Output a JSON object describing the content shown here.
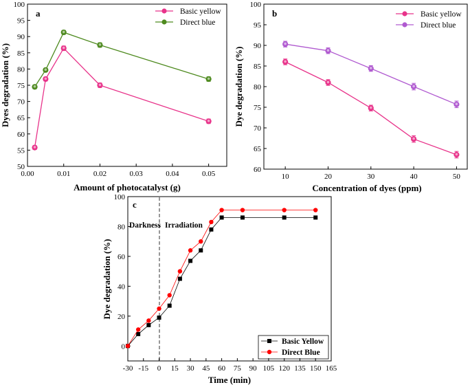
{
  "chart_data": [
    {
      "panel": "a",
      "type": "line",
      "xlabel": "Amount of photocatalyst (g)",
      "ylabel": "Dyes degradation (%)",
      "xlim": [
        0.0,
        0.055
      ],
      "ylim": [
        50,
        100
      ],
      "xticks": [
        0.0,
        0.01,
        0.02,
        0.03,
        0.04,
        0.05
      ],
      "xtick_labels": [
        "0.00",
        "0.01",
        "0.02",
        "0.03",
        "0.04",
        "0.05"
      ],
      "yticks": [
        50,
        55,
        60,
        65,
        70,
        75,
        80,
        85,
        90,
        95,
        100
      ],
      "legend_position": "top-right",
      "series": [
        {
          "name": "Basic yellow",
          "color": "#e8338a",
          "marker": "circle",
          "x": [
            0.002,
            0.005,
            0.01,
            0.02,
            0.05
          ],
          "y": [
            55.8,
            76.9,
            86.4,
            75.0,
            63.9
          ],
          "err": [
            0.6,
            0.6,
            0.7,
            0.7,
            0.7
          ]
        },
        {
          "name": "Direct blue",
          "color": "#4e8a1f",
          "marker": "circle",
          "x": [
            0.002,
            0.005,
            0.01,
            0.02,
            0.05
          ],
          "y": [
            74.5,
            79.7,
            91.3,
            87.4,
            76.9
          ],
          "err": [
            0.6,
            0.5,
            0.6,
            0.7,
            0.7
          ]
        }
      ]
    },
    {
      "panel": "b",
      "type": "line",
      "xlabel": "Concentration of dyes (ppm)",
      "ylabel": "Dye degradation (%)",
      "xlim": [
        5,
        52.5
      ],
      "ylim": [
        60,
        100
      ],
      "xticks": [
        10,
        20,
        30,
        40,
        50
      ],
      "xtick_labels": [
        "10",
        "20",
        "30",
        "40",
        "50"
      ],
      "yticks": [
        60,
        65,
        70,
        75,
        80,
        85,
        90,
        95,
        100
      ],
      "legend_position": "top-right",
      "series": [
        {
          "name": "Basic yellow",
          "color": "#e8338a",
          "marker": "circle",
          "x": [
            10,
            20,
            30,
            40,
            50
          ],
          "y": [
            86.0,
            81.0,
            74.8,
            67.3,
            63.5
          ],
          "err": [
            0.7,
            0.7,
            0.7,
            0.8,
            0.8
          ]
        },
        {
          "name": "Direct blue",
          "color": "#b05ad0",
          "marker": "circle",
          "x": [
            10,
            20,
            30,
            40,
            50
          ],
          "y": [
            90.3,
            88.7,
            84.4,
            80.0,
            75.7
          ],
          "err": [
            0.7,
            0.7,
            0.7,
            0.8,
            0.8
          ]
        }
      ]
    },
    {
      "panel": "c",
      "type": "line",
      "xlabel": "Time (min)",
      "ylabel": "Dye degradation (%)",
      "xlim": [
        -30,
        165
      ],
      "ylim": [
        -10,
        100
      ],
      "xticks": [
        -30,
        -15,
        0,
        15,
        30,
        45,
        60,
        75,
        90,
        105,
        120,
        135,
        150,
        165
      ],
      "xtick_labels": [
        "-30",
        "-15",
        "0",
        "15",
        "30",
        "45",
        "60",
        "75",
        "90",
        "105",
        "120",
        "135",
        "150",
        "165"
      ],
      "yticks": [
        0,
        20,
        40,
        60,
        80,
        100
      ],
      "annotations": [
        "Darkness",
        "Irradiation"
      ],
      "divider_x": 0,
      "legend_position": "bottom-right",
      "series": [
        {
          "name": "Basic Yellow",
          "color": "#000000",
          "marker": "square",
          "x": [
            -30,
            -20,
            -10,
            0,
            10,
            20,
            30,
            40,
            50,
            60,
            80,
            120,
            150
          ],
          "y": [
            0,
            8,
            14,
            19,
            27,
            45,
            57,
            64,
            78,
            86,
            86,
            86,
            86
          ]
        },
        {
          "name": "Direct Blue",
          "color": "#ff0000",
          "marker": "circle",
          "x": [
            -30,
            -20,
            -10,
            0,
            10,
            20,
            30,
            40,
            50,
            60,
            80,
            120,
            150
          ],
          "y": [
            0,
            11,
            17,
            25,
            34,
            50,
            64,
            70,
            83,
            91,
            91,
            91,
            91
          ]
        }
      ]
    }
  ]
}
